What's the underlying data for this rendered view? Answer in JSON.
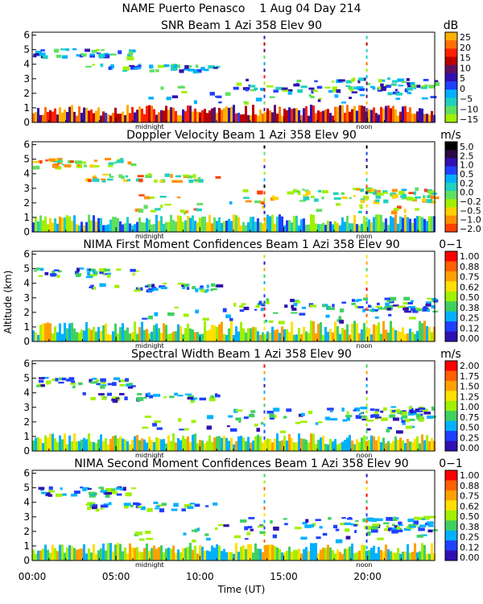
{
  "header": {
    "title_line1": "NAME Puerto Penasco    1 Aug 04 Day 214",
    "y_axis_label": "Altitude (km)",
    "x_axis_label": "Time (UT)"
  },
  "time_axis": {
    "ticks": [
      {
        "value": 0,
        "label": "00:00"
      },
      {
        "value": 5,
        "label": "05:00"
      },
      {
        "value": 10,
        "label": "10:00"
      },
      {
        "value": 15,
        "label": "15:00"
      },
      {
        "value": 20,
        "label": "20:00"
      }
    ],
    "range": [
      0,
      24
    ],
    "markers": [
      {
        "value": 7.0,
        "label": "midnight"
      },
      {
        "value": 19.8,
        "label": "noon"
      }
    ]
  },
  "altitude_axis": {
    "range": [
      0,
      6.2
    ],
    "ticks": [
      "0",
      "1",
      "2",
      "3",
      "4",
      "5",
      "6"
    ]
  },
  "chart_data": [
    {
      "type": "heatmap",
      "title": "SNR Beam 1 Azi 358 Elev 90",
      "unit": "dB",
      "colorbar": {
        "labels": [
          "25",
          "20",
          "15",
          "10",
          "5",
          "0",
          "−5",
          "−10",
          "−15"
        ],
        "colors": [
          "#ffb000",
          "#ff7000",
          "#ff2000",
          "#bb0000",
          "#601060",
          "#3010b0",
          "#2040ff",
          "#00b0ff",
          "#20d0c0",
          "#60e060",
          "#a0f000"
        ]
      }
    },
    {
      "type": "heatmap",
      "title": "Doppler Velocity Beam 1 Azi 358 Elev 90",
      "unit": "m/s",
      "colorbar": {
        "labels": [
          "5.0",
          "2.5",
          "1.0",
          "0.5",
          "0.2",
          "0.0",
          "−0.2",
          "−0.5",
          "−1.0",
          "−2.0"
        ],
        "colors": [
          "#000000",
          "#2a0a40",
          "#3010b0",
          "#2040ff",
          "#00b0ff",
          "#20d0c0",
          "#60e060",
          "#a0f000",
          "#ffd000",
          "#ff9000",
          "#ff4000"
        ]
      }
    },
    {
      "type": "heatmap",
      "title": "NIMA First Moment Confidences Beam 1 Azi 358 Elev 90",
      "unit": "0−1",
      "colorbar": {
        "labels": [
          "1.00",
          "0.88",
          "0.75",
          "0.62",
          "0.50",
          "0.38",
          "0.25",
          "0.12",
          "0.00"
        ],
        "colors": [
          "#ff0000",
          "#ff6000",
          "#ffa000",
          "#ffe000",
          "#a0f000",
          "#40d060",
          "#00b0ff",
          "#2040ff",
          "#3010b0"
        ]
      }
    },
    {
      "type": "heatmap",
      "title": "Spectral Width Beam 1 Azi 358 Elev 90",
      "unit": "m/s",
      "colorbar": {
        "labels": [
          "2.00",
          "1.75",
          "1.50",
          "1.25",
          "1.00",
          "0.75",
          "0.50",
          "0.25",
          "0.00"
        ],
        "colors": [
          "#ff0000",
          "#ff6000",
          "#ffa000",
          "#ffe000",
          "#a0f000",
          "#40d060",
          "#00b0ff",
          "#2040ff",
          "#3010b0"
        ]
      }
    },
    {
      "type": "heatmap",
      "title": "NIMA Second Moment Confidences Beam 1 Azi 358 Elev 90",
      "unit": "0−1",
      "colorbar": {
        "labels": [
          "1.00",
          "0.88",
          "0.75",
          "0.62",
          "0.50",
          "0.38",
          "0.25",
          "0.12",
          "0.00"
        ],
        "colors": [
          "#ff0000",
          "#ff6000",
          "#ffa000",
          "#ffe000",
          "#a0f000",
          "#40d060",
          "#00b0ff",
          "#2040ff",
          "#3010b0"
        ]
      }
    }
  ]
}
